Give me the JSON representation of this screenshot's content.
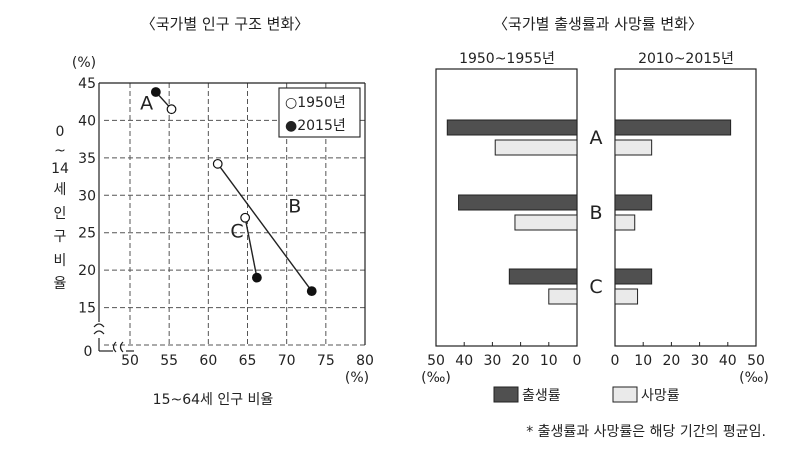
{
  "chart_data": [
    {
      "type": "scatter",
      "title": "〈국가별 인구 구조 변화〉",
      "xlabel": "15~64세 인구 비율",
      "x_unit": "(%)",
      "ylabel": "0~14세 인구 비율",
      "ylabel_chars": [
        "0",
        "~",
        "14",
        "세",
        "인",
        "구",
        "비",
        "율"
      ],
      "y_unit": "(%)",
      "xlim": [
        45,
        80
      ],
      "ylim": [
        10,
        45
      ],
      "x_ticks": [
        50,
        55,
        60,
        65,
        70,
        75,
        80
      ],
      "y_ticks": [
        15,
        20,
        25,
        30,
        35,
        40,
        45
      ],
      "origin_label": "0",
      "grid": true,
      "legend_position": "top-right",
      "legend": [
        {
          "marker": "open-circle",
          "label": "○1950년"
        },
        {
          "marker": "filled-circle",
          "label": "●2015년"
        }
      ],
      "series": [
        {
          "name": "A",
          "points": [
            {
              "x": 55.3,
              "y": 41.5,
              "year": "1950"
            },
            {
              "x": 53.3,
              "y": 43.8,
              "year": "2015"
            }
          ]
        },
        {
          "name": "B",
          "points": [
            {
              "x": 61.2,
              "y": 34.2,
              "year": "1950"
            },
            {
              "x": 73.2,
              "y": 17.2,
              "year": "2015"
            }
          ]
        },
        {
          "name": "C",
          "points": [
            {
              "x": 64.7,
              "y": 27.0,
              "year": "1950"
            },
            {
              "x": 66.2,
              "y": 19.0,
              "year": "2015"
            }
          ]
        }
      ]
    },
    {
      "type": "bar",
      "orientation": "horizontal",
      "title": "〈국가별 출생률과 사망률 변화〉",
      "categories": [
        "A",
        "B",
        "C"
      ],
      "x_unit": "(‰)",
      "panels": [
        {
          "period": "1950~1955년",
          "direction": "left",
          "xlim": [
            0,
            50
          ],
          "x_ticks": [
            50,
            40,
            30,
            20,
            10,
            0
          ],
          "series": [
            {
              "name": "출생률",
              "values": [
                46,
                42,
                24
              ]
            },
            {
              "name": "사망률",
              "values": [
                29,
                22,
                10
              ]
            }
          ]
        },
        {
          "period": "2010~2015년",
          "direction": "right",
          "xlim": [
            0,
            50
          ],
          "x_ticks": [
            0,
            10,
            20,
            30,
            40,
            50
          ],
          "series": [
            {
              "name": "출생률",
              "values": [
                41,
                13,
                13
              ]
            },
            {
              "name": "사망률",
              "values": [
                13,
                7,
                8
              ]
            }
          ]
        }
      ],
      "legend": [
        {
          "name": "출생률",
          "color": "#505050"
        },
        {
          "name": "사망률",
          "color": "#eaeaea"
        }
      ],
      "footnote": "* 출생률과 사망률은 해당 기간의 평균임."
    }
  ]
}
